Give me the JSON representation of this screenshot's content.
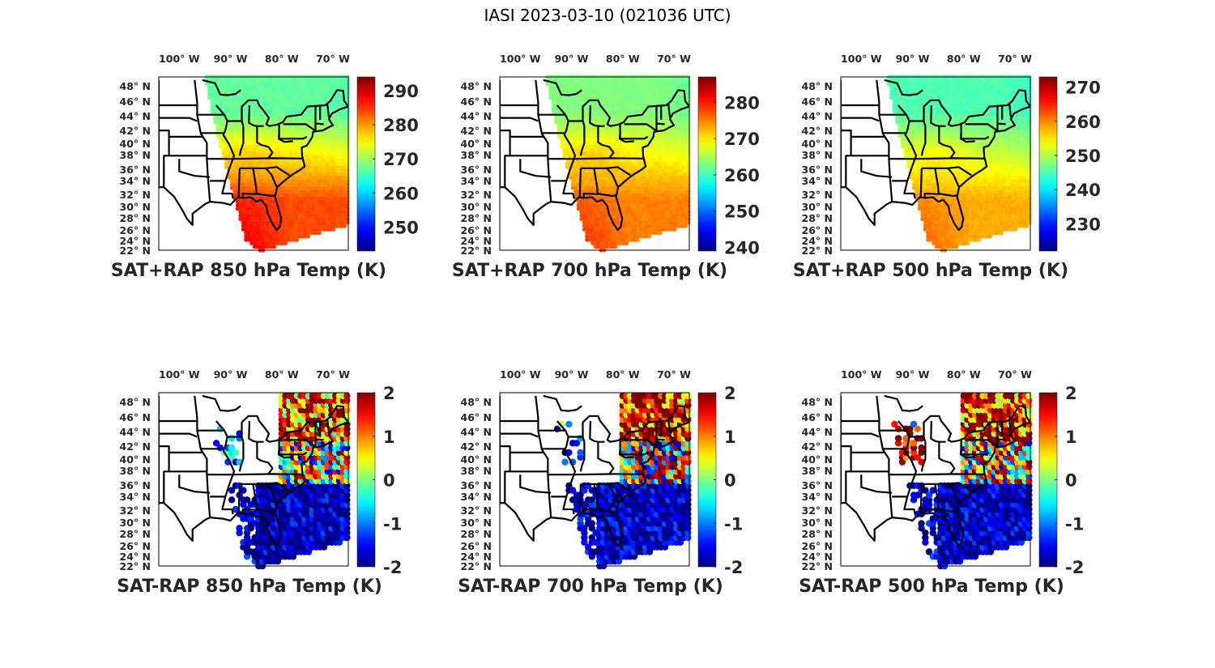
{
  "suptitle": "IASI 2023-03-10 (021036 UTC)",
  "colormap": "jet",
  "colors": {
    "jet": [
      "#00008f",
      "#0000ff",
      "#0080ff",
      "#00ffff",
      "#80ff80",
      "#ffff00",
      "#ff8000",
      "#ff0000",
      "#800000"
    ],
    "axis": "#262626",
    "state_lines": "#000000"
  },
  "chart_data": [
    {
      "type": "heatmap",
      "title": "SAT+RAP 850 hPa Temp (K)",
      "xlabel": "",
      "ylabel": "",
      "x_ticks": [
        "100° W",
        "90° W",
        "80° W",
        "70° W"
      ],
      "y_ticks": [
        "48° N",
        "46° N",
        "44° N",
        "42° N",
        "40° N",
        "38° N",
        "36° N",
        "34° N",
        "32° N",
        "30° N",
        "28° N",
        "26° N",
        "24° N",
        "22° N"
      ],
      "colorbar": {
        "ticks": [
          250,
          260,
          270,
          280,
          290
        ],
        "range": [
          243,
          294
        ]
      },
      "field": {
        "north": 267,
        "southeast": 284,
        "south_swath": 289,
        "ohio_valley": 279
      }
    },
    {
      "type": "heatmap",
      "title": "SAT+RAP 700 hPa Temp (K)",
      "xlabel": "",
      "ylabel": "",
      "x_ticks": [
        "100° W",
        "90° W",
        "80° W",
        "70° W"
      ],
      "y_ticks": [
        "48° N",
        "46° N",
        "44° N",
        "42° N",
        "40° N",
        "38° N",
        "36° N",
        "34° N",
        "32° N",
        "30° N",
        "28° N",
        "26° N",
        "24° N",
        "22° N"
      ],
      "colorbar": {
        "ticks": [
          240,
          250,
          260,
          270,
          280
        ],
        "range": [
          239,
          287
        ]
      },
      "field": {
        "north": 263,
        "southeast": 275,
        "south_swath": 279,
        "ohio_valley": 273
      }
    },
    {
      "type": "heatmap",
      "title": "SAT+RAP 500 hPa Temp (K)",
      "xlabel": "",
      "ylabel": "",
      "x_ticks": [
        "100° W",
        "90° W",
        "80° W",
        "70° W"
      ],
      "y_ticks": [
        "48° N",
        "46° N",
        "44° N",
        "42° N",
        "40° N",
        "38° N",
        "36° N",
        "34° N",
        "32° N",
        "30° N",
        "28° N",
        "26° N",
        "24° N",
        "22° N"
      ],
      "colorbar": {
        "ticks": [
          230,
          240,
          250,
          260,
          270
        ],
        "range": [
          222,
          273
        ]
      },
      "field": {
        "north": 245,
        "southeast": 258,
        "south_swath": 262,
        "ohio_valley": 256
      }
    },
    {
      "type": "scatter",
      "title": "SAT-RAP 850 hPa Temp (K)",
      "xlabel": "",
      "ylabel": "",
      "x_ticks": [
        "100° W",
        "90° W",
        "80° W",
        "70° W"
      ],
      "y_ticks": [
        "48° N",
        "46° N",
        "44° N",
        "42° N",
        "40° N",
        "38° N",
        "36° N",
        "34° N",
        "32° N",
        "30° N",
        "28° N",
        "26° N",
        "24° N",
        "22° N"
      ],
      "colorbar": {
        "ticks": [
          -2,
          -1,
          0,
          1,
          2
        ],
        "range": [
          -2,
          2
        ]
      },
      "field": {
        "northeast": 1.2,
        "mid_atlantic": -0.8,
        "southeast": -2.0,
        "midwest_cluster": -1.0
      }
    },
    {
      "type": "scatter",
      "title": "SAT-RAP 700 hPa Temp (K)",
      "xlabel": "",
      "ylabel": "",
      "x_ticks": [
        "100° W",
        "90° W",
        "80° W",
        "70° W"
      ],
      "y_ticks": [
        "48° N",
        "46° N",
        "44° N",
        "42° N",
        "40° N",
        "38° N",
        "36° N",
        "34° N",
        "32° N",
        "30° N",
        "28° N",
        "26° N",
        "24° N",
        "22° N"
      ],
      "colorbar": {
        "ticks": [
          -2,
          -1,
          0,
          1,
          2
        ],
        "range": [
          -2,
          2
        ]
      },
      "field": {
        "northeast": 1.6,
        "mid_atlantic": -1.2,
        "southeast": -2.0,
        "midwest_cluster": -1.8
      }
    },
    {
      "type": "scatter",
      "title": "SAT-RAP 500 hPa Temp (K)",
      "xlabel": "",
      "ylabel": "",
      "x_ticks": [
        "100° W",
        "90° W",
        "80° W",
        "70° W"
      ],
      "y_ticks": [
        "48° N",
        "46° N",
        "44° N",
        "42° N",
        "40° N",
        "38° N",
        "36° N",
        "34° N",
        "32° N",
        "30° N",
        "28° N",
        "26° N",
        "24° N",
        "22° N"
      ],
      "colorbar": {
        "ticks": [
          -2,
          -1,
          0,
          1,
          2
        ],
        "range": [
          -2,
          2
        ]
      },
      "field": {
        "northeast": 1.5,
        "mid_atlantic": -0.5,
        "southeast": -2.0,
        "midwest_cluster": 1.8
      }
    }
  ]
}
